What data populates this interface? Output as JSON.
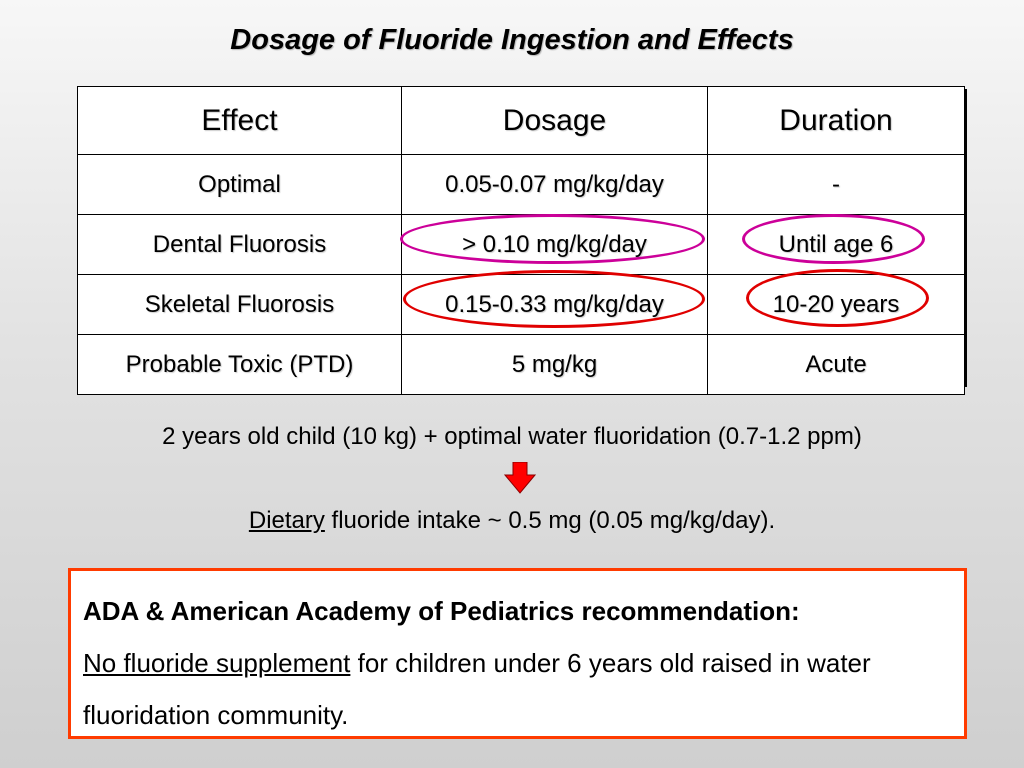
{
  "title": "Dosage of Fluoride Ingestion and Effects",
  "table": {
    "headers": [
      "Effect",
      "Dosage",
      "Duration"
    ],
    "rows": [
      [
        "Optimal",
        "0.05-0.07 mg/kg/day",
        "-"
      ],
      [
        "Dental Fluorosis",
        "> 0.10 mg/kg/day",
        "Until age 6"
      ],
      [
        "Skeletal Fluorosis",
        "0.15-0.33 mg/kg/day",
        "10-20 years"
      ],
      [
        "Probable Toxic (PTD)",
        "5 mg/kg",
        "Acute"
      ]
    ]
  },
  "highlights": {
    "magenta_color": "#cc0099",
    "red_color": "#e00000"
  },
  "example_line": "2 years old child (10 kg) + optimal water fluoridation (0.7-1.2 ppm)",
  "arrow_icon": "down-arrow-icon",
  "arrow_color": "#ff0000",
  "result_line": {
    "underlined": "Dietary",
    "rest": " fluoride intake ~ 0.5 mg (0.05 mg/kg/day)."
  },
  "recommendation": {
    "heading": "ADA & American Academy of Pediatrics recommendation:",
    "underlined": "No fluoride supplement",
    "body": " for children under 6 years old raised in water fluoridation community."
  },
  "colors": {
    "box_border": "#ff3b00"
  }
}
